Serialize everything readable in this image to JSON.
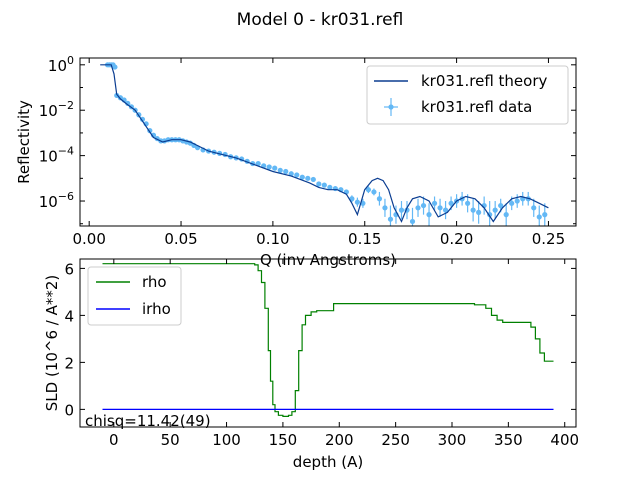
{
  "figure": {
    "title": "Model 0 - kr031.refl"
  },
  "chart_data": [
    {
      "type": "scatter",
      "title": "Model 0 - kr031.refl",
      "xlabel": "Q (inv Angstroms)",
      "ylabel": "Reflectivity",
      "xlim": [
        -0.005,
        0.265
      ],
      "ylim_log10": [
        -7.1,
        0.3
      ],
      "yscale": "log",
      "x_ticks": [
        0.0,
        0.05,
        0.1,
        0.15,
        0.2,
        0.25
      ],
      "x_tick_labels": [
        "0.00",
        "0.05",
        "0.10",
        "0.15",
        "0.20",
        "0.25"
      ],
      "y_ticks_log10": [
        0,
        -2,
        -4,
        -6
      ],
      "y_tick_labels": [
        "10^0",
        "10^-2",
        "10^-4",
        "10^-6"
      ],
      "legend_position": "top-right",
      "colors": {
        "theory": "#0b3d91",
        "data": "#63b8f5"
      },
      "series": [
        {
          "name": "kr031.refl theory",
          "kind": "line",
          "x": [
            0.006,
            0.009,
            0.012,
            0.0135,
            0.015,
            0.017,
            0.02,
            0.025,
            0.03,
            0.035,
            0.04,
            0.045,
            0.05,
            0.055,
            0.06,
            0.065,
            0.07,
            0.08,
            0.09,
            0.1,
            0.11,
            0.12,
            0.125,
            0.13,
            0.135,
            0.14,
            0.143,
            0.146,
            0.15,
            0.154,
            0.157,
            0.16,
            0.163,
            0.166,
            0.17,
            0.173,
            0.176,
            0.18,
            0.185,
            0.19,
            0.195,
            0.2,
            0.205,
            0.21,
            0.215,
            0.22,
            0.225,
            0.23,
            0.235,
            0.24,
            0.245,
            0.25
          ],
          "log10_y": [
            0,
            0,
            0,
            -0.4,
            -1.3,
            -1.5,
            -1.7,
            -2,
            -2.6,
            -3.2,
            -3.4,
            -3.3,
            -3.3,
            -3.4,
            -3.6,
            -3.8,
            -3.9,
            -4.1,
            -4.4,
            -4.7,
            -4.9,
            -5.2,
            -5.4,
            -5.5,
            -5.5,
            -5.7,
            -6.1,
            -6.6,
            -5.5,
            -5.1,
            -5.0,
            -5.1,
            -5.5,
            -6.3,
            -6.9,
            -6.3,
            -5.9,
            -5.8,
            -6.0,
            -6.7,
            -6.5,
            -6.0,
            -5.8,
            -5.9,
            -6.3,
            -6.9,
            -6.3,
            -5.9,
            -5.8,
            -5.9,
            -6.1,
            -6.3
          ]
        },
        {
          "name": "kr031.refl data",
          "kind": "errorbar",
          "x": [
            0.01,
            0.011,
            0.012,
            0.013,
            0.014,
            0.015,
            0.017,
            0.019,
            0.021,
            0.023,
            0.025,
            0.027,
            0.029,
            0.031,
            0.033,
            0.035,
            0.037,
            0.039,
            0.041,
            0.043,
            0.045,
            0.047,
            0.049,
            0.051,
            0.053,
            0.055,
            0.057,
            0.059,
            0.062,
            0.065,
            0.068,
            0.071,
            0.074,
            0.077,
            0.08,
            0.083,
            0.086,
            0.089,
            0.092,
            0.095,
            0.098,
            0.101,
            0.104,
            0.107,
            0.11,
            0.113,
            0.116,
            0.119,
            0.122,
            0.125,
            0.128,
            0.131,
            0.134,
            0.137,
            0.14,
            0.143,
            0.146,
            0.149,
            0.152,
            0.155,
            0.158,
            0.161,
            0.164,
            0.167,
            0.17,
            0.173,
            0.176,
            0.179,
            0.182,
            0.185,
            0.188,
            0.191,
            0.194,
            0.197,
            0.2,
            0.203,
            0.206,
            0.209,
            0.212,
            0.215,
            0.218,
            0.221,
            0.224,
            0.227,
            0.23,
            0.233,
            0.236,
            0.239,
            0.242,
            0.245,
            0.248
          ],
          "log10_y": [
            0,
            0,
            0,
            0,
            -0.1,
            -1.35,
            -1.45,
            -1.55,
            -1.7,
            -1.85,
            -2.0,
            -2.2,
            -2.4,
            -2.6,
            -2.9,
            -3.1,
            -3.25,
            -3.35,
            -3.35,
            -3.3,
            -3.3,
            -3.3,
            -3.3,
            -3.35,
            -3.4,
            -3.45,
            -3.55,
            -3.65,
            -3.75,
            -3.8,
            -3.85,
            -3.9,
            -3.95,
            -4.05,
            -4.1,
            -4.15,
            -4.25,
            -4.35,
            -4.35,
            -4.45,
            -4.5,
            -4.55,
            -4.65,
            -4.7,
            -4.8,
            -4.85,
            -4.95,
            -5.0,
            -5.05,
            -5.25,
            -5.3,
            -5.4,
            -5.45,
            -5.5,
            -5.6,
            -5.9,
            -6.05,
            -6.1,
            -5.5,
            -5.6,
            -5.9,
            -6.3,
            -6.8,
            -6.6,
            -6.4,
            -6.4,
            -6.9,
            -6.3,
            -6.2,
            -6.6,
            -6.1,
            -6.3,
            -6.4,
            -6.1,
            -6.0,
            -5.9,
            -6.1,
            -6.4,
            -6.5,
            -6.2,
            -6.6,
            -6.4,
            -6.2,
            -6.6,
            -6.1,
            -6.0,
            -5.9,
            -5.9,
            -6.3,
            -6.7,
            -6.6
          ],
          "log10_err": [
            0.05,
            0.05,
            0.05,
            0.05,
            0.05,
            0.05,
            0.05,
            0.05,
            0.05,
            0.05,
            0.05,
            0.05,
            0.05,
            0.05,
            0.05,
            0.05,
            0.05,
            0.05,
            0.05,
            0.05,
            0.05,
            0.05,
            0.05,
            0.05,
            0.05,
            0.05,
            0.05,
            0.05,
            0.05,
            0.05,
            0.05,
            0.05,
            0.05,
            0.05,
            0.05,
            0.05,
            0.05,
            0.05,
            0.05,
            0.05,
            0.05,
            0.05,
            0.05,
            0.05,
            0.05,
            0.05,
            0.05,
            0.05,
            0.05,
            0.05,
            0.05,
            0.1,
            0.1,
            0.1,
            0.1,
            0.15,
            0.2,
            0.2,
            0.15,
            0.15,
            0.3,
            0.4,
            0.6,
            0.4,
            0.4,
            0.4,
            0.6,
            0.4,
            0.4,
            0.5,
            0.3,
            0.4,
            0.4,
            0.3,
            0.3,
            0.3,
            0.4,
            0.5,
            0.5,
            0.4,
            0.6,
            0.4,
            0.3,
            0.5,
            0.3,
            0.3,
            0.3,
            0.3,
            0.4,
            0.5,
            0.5
          ]
        }
      ]
    },
    {
      "type": "line",
      "xlabel": "depth (A)",
      "ylabel": "SLD (10^6 / A**2)",
      "xlim": [
        -30,
        410
      ],
      "ylim": [
        -0.75,
        6.4
      ],
      "x_ticks": [
        0,
        50,
        100,
        150,
        200,
        250,
        300,
        350,
        400
      ],
      "x_tick_labels": [
        "0",
        "50",
        "100",
        "150",
        "200",
        "250",
        "300",
        "350",
        "400"
      ],
      "y_ticks": [
        0,
        2,
        4,
        6
      ],
      "y_tick_labels": [
        "0",
        "2",
        "4",
        "6"
      ],
      "legend_position": "top-left",
      "annotation": "chisq=11.42(49)",
      "series": [
        {
          "name": "rho",
          "color": "#008000",
          "step": true,
          "x": [
            -10,
            120,
            125,
            128,
            131,
            134,
            137,
            139,
            141,
            143,
            146,
            150,
            155,
            158,
            161,
            164,
            167,
            170,
            175,
            180,
            195,
            195,
            200,
            300,
            320,
            330,
            335,
            340,
            345,
            350,
            365,
            370,
            374,
            378,
            382,
            390
          ],
          "y": [
            6.2,
            6.2,
            6.15,
            5.9,
            5.4,
            4.3,
            2.5,
            1.2,
            0.2,
            -0.1,
            -0.25,
            -0.3,
            -0.25,
            -0.1,
            0.8,
            2.5,
            3.6,
            4.0,
            4.15,
            4.2,
            4.2,
            4.5,
            4.5,
            4.5,
            4.45,
            4.3,
            4.0,
            3.8,
            3.7,
            3.7,
            3.7,
            3.5,
            3.0,
            2.4,
            2.05,
            2.05
          ]
        },
        {
          "name": "irho",
          "color": "#0000ff",
          "step": false,
          "x": [
            -10,
            390
          ],
          "y": [
            0,
            0
          ]
        }
      ]
    }
  ]
}
